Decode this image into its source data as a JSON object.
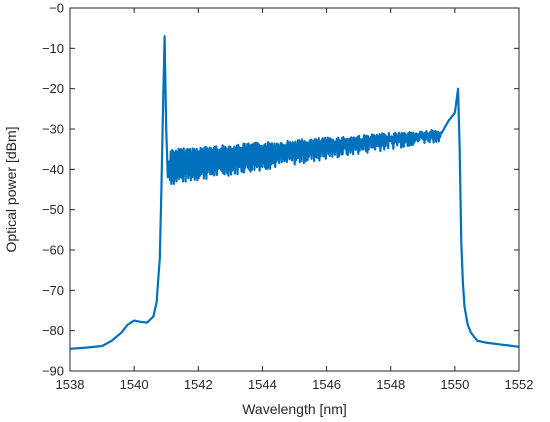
{
  "chart_data": {
    "type": "line",
    "title": "",
    "xlabel": "Wavelength [nm]",
    "ylabel": "Optical power [dBm]",
    "xlim": [
      1538,
      1552
    ],
    "ylim": [
      -90,
      0
    ],
    "xticks": [
      1538,
      1540,
      1542,
      1544,
      1546,
      1548,
      1550,
      1552
    ],
    "yticks": [
      0,
      -10,
      -20,
      -30,
      -40,
      -50,
      -60,
      -70,
      -80,
      -90
    ],
    "ytick_labels": [
      "−0",
      "−10",
      "−20",
      "−30",
      "−40",
      "−50",
      "−60",
      "−70",
      "−80",
      "−90"
    ],
    "grid": false,
    "line_color": "#0072BD",
    "series": [
      {
        "x": [
          1538.0,
          1538.5,
          1539.0,
          1539.3,
          1539.6,
          1539.8,
          1540.0,
          1540.2,
          1540.4,
          1540.6,
          1540.7,
          1540.8,
          1540.85,
          1540.9,
          1540.95,
          1541.0,
          1541.05,
          1541.1,
          1541.2,
          1541.3,
          1542.0,
          1543.0,
          1544.0,
          1545.0,
          1546.0,
          1547.0,
          1548.0,
          1548.5,
          1549.0,
          1549.5,
          1549.8,
          1550.0,
          1550.1,
          1550.15,
          1550.2,
          1550.25,
          1550.3,
          1550.4,
          1550.5,
          1550.7,
          1551.0,
          1551.5,
          1552.0
        ],
        "y": [
          -84.5,
          -84.2,
          -83.8,
          -82.5,
          -80.5,
          -78.5,
          -77.5,
          -77.8,
          -78.0,
          -76.5,
          -73.0,
          -62.0,
          -45.0,
          -25.0,
          -7.0,
          -30.0,
          -42.0,
          -38.0,
          -39.0,
          -38.5,
          -38.0,
          -37.0,
          -36.0,
          -35.0,
          -34.0,
          -33.5,
          -33.0,
          -32.5,
          -31.0,
          -29.5,
          -28.0,
          -26.0,
          -20.0,
          -35.0,
          -58.0,
          -68.0,
          -74.0,
          -78.5,
          -80.5,
          -82.5,
          -83.0,
          -83.5,
          -84.0
        ]
      }
    ],
    "noise_band": {
      "x_start": 1541.1,
      "x_end": 1549.6,
      "upper_start": -35.0,
      "upper_end": -30.0,
      "lower_start": -44.0,
      "lower_end": -33.0
    }
  }
}
